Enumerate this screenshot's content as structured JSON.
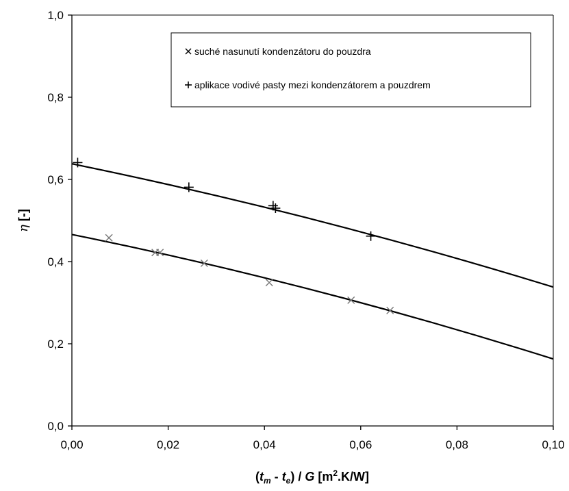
{
  "chart_data": {
    "type": "scatter",
    "title": "",
    "xlabel": "(t_m - t_e) / G  [m2.K/W]",
    "xlabel_parts": {
      "open": "(",
      "t1": "t",
      "sub1": "m",
      "dash": " - ",
      "t2": "t",
      "sub2": "e",
      "close": ") / ",
      "g": "G",
      "unit": "[m",
      "sup": "2",
      "unit_end": ".K/W]"
    },
    "ylabel": "η [-]",
    "ylabel_parts": {
      "symbol": "η",
      "unit": "[-]"
    },
    "xlim": [
      0,
      0.1
    ],
    "ylim": [
      0,
      1
    ],
    "x_ticks": [
      "0,00",
      "0,02",
      "0,04",
      "0,06",
      "0,08",
      "0,10"
    ],
    "y_ticks": [
      "0,0",
      "0,2",
      "0,4",
      "0,6",
      "0,8",
      "1,0"
    ],
    "grid": false,
    "legend_position": "top-right",
    "series": [
      {
        "name": "suché nasunutí kondenzátoru do pouzdra",
        "marker": "x",
        "color": "#777777",
        "points": [
          [
            0.0077,
            0.458
          ],
          [
            0.0173,
            0.422
          ],
          [
            0.0183,
            0.422
          ],
          [
            0.0275,
            0.396
          ],
          [
            0.041,
            0.349
          ],
          [
            0.058,
            0.306
          ],
          [
            0.0661,
            0.281
          ]
        ],
        "fit": [
          [
            0,
            0.466
          ],
          [
            0.05,
            0.331
          ],
          [
            0.1,
            0.163
          ]
        ]
      },
      {
        "name": "aplikace vodivé pasty mezi kondenzátorem a pouzdrem",
        "marker": "+",
        "color": "#000000",
        "points": [
          [
            0.0012,
            0.641
          ],
          [
            0.0243,
            0.581
          ],
          [
            0.0418,
            0.536
          ],
          [
            0.0423,
            0.53
          ],
          [
            0.0621,
            0.462
          ]
        ],
        "fit": [
          [
            0,
            0.638
          ],
          [
            0.05,
            0.503
          ],
          [
            0.1,
            0.338
          ]
        ]
      }
    ]
  }
}
